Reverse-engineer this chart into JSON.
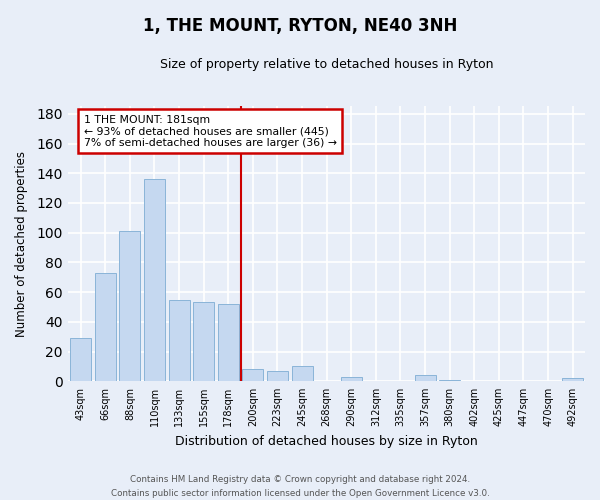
{
  "title": "1, THE MOUNT, RYTON, NE40 3NH",
  "subtitle": "Size of property relative to detached houses in Ryton",
  "xlabel": "Distribution of detached houses by size in Ryton",
  "ylabel": "Number of detached properties",
  "bar_labels": [
    "43sqm",
    "66sqm",
    "88sqm",
    "110sqm",
    "133sqm",
    "155sqm",
    "178sqm",
    "200sqm",
    "223sqm",
    "245sqm",
    "268sqm",
    "290sqm",
    "312sqm",
    "335sqm",
    "357sqm",
    "380sqm",
    "402sqm",
    "425sqm",
    "447sqm",
    "470sqm",
    "492sqm"
  ],
  "bar_values": [
    29,
    73,
    101,
    136,
    55,
    53,
    52,
    8,
    7,
    10,
    0,
    3,
    0,
    0,
    4,
    1,
    0,
    0,
    0,
    0,
    2
  ],
  "bar_color": "#c5d8f0",
  "bar_edge_color": "#8ab4d8",
  "vline_color": "#cc0000",
  "annotation_box_text": "1 THE MOUNT: 181sqm\n← 93% of detached houses are smaller (445)\n7% of semi-detached houses are larger (36) →",
  "annotation_box_facecolor": "white",
  "annotation_box_edgecolor": "#cc0000",
  "ylim": [
    0,
    185
  ],
  "yticks": [
    0,
    20,
    40,
    60,
    80,
    100,
    120,
    140,
    160,
    180
  ],
  "footer_text": "Contains HM Land Registry data © Crown copyright and database right 2024.\nContains public sector information licensed under the Open Government Licence v3.0.",
  "bg_color": "#e8eef8",
  "grid_color": "#ffffff"
}
